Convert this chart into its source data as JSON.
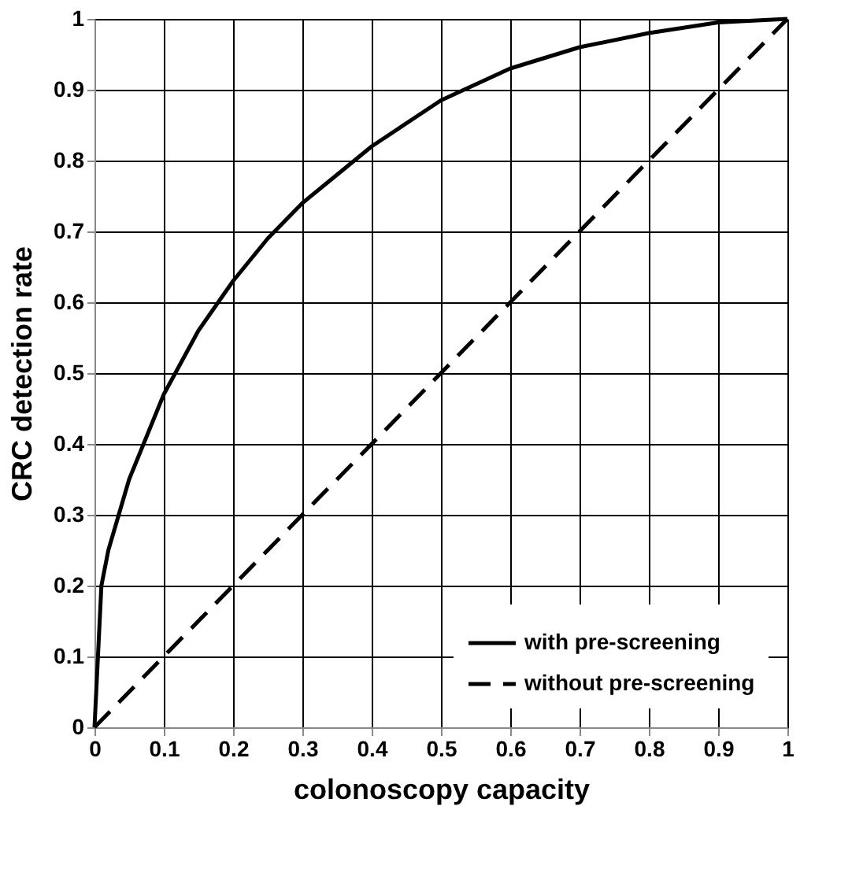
{
  "chart_data": {
    "type": "line",
    "xlabel": "colonoscopy capacity",
    "ylabel": "CRC detection rate",
    "xlim": [
      0,
      1
    ],
    "ylim": [
      0,
      1
    ],
    "xticks": [
      0,
      0.1,
      0.2,
      0.3,
      0.4,
      0.5,
      0.6,
      0.7,
      0.8,
      0.9,
      1
    ],
    "yticks": [
      0,
      0.1,
      0.2,
      0.3,
      0.4,
      0.5,
      0.6,
      0.7,
      0.8,
      0.9,
      1
    ],
    "grid": true,
    "legend": "bottom right",
    "marker": "none",
    "series": [
      {
        "name": "with pre-screening",
        "color": "#000000",
        "line_style": "solid",
        "x": [
          0,
          0.005,
          0.01,
          0.02,
          0.05,
          0.1,
          0.15,
          0.2,
          0.25,
          0.3,
          0.35,
          0.4,
          0.5,
          0.6,
          0.7,
          0.8,
          0.9,
          1
        ],
        "values": [
          0,
          0.1,
          0.2,
          0.25,
          0.35,
          0.47,
          0.56,
          0.63,
          0.69,
          0.74,
          0.78,
          0.82,
          0.885,
          0.93,
          0.96,
          0.98,
          0.995,
          1
        ]
      },
      {
        "name": "without pre-screening",
        "color": "#000000",
        "line_style": "dashed",
        "x": [
          0,
          1
        ],
        "values": [
          0,
          1
        ]
      }
    ]
  }
}
